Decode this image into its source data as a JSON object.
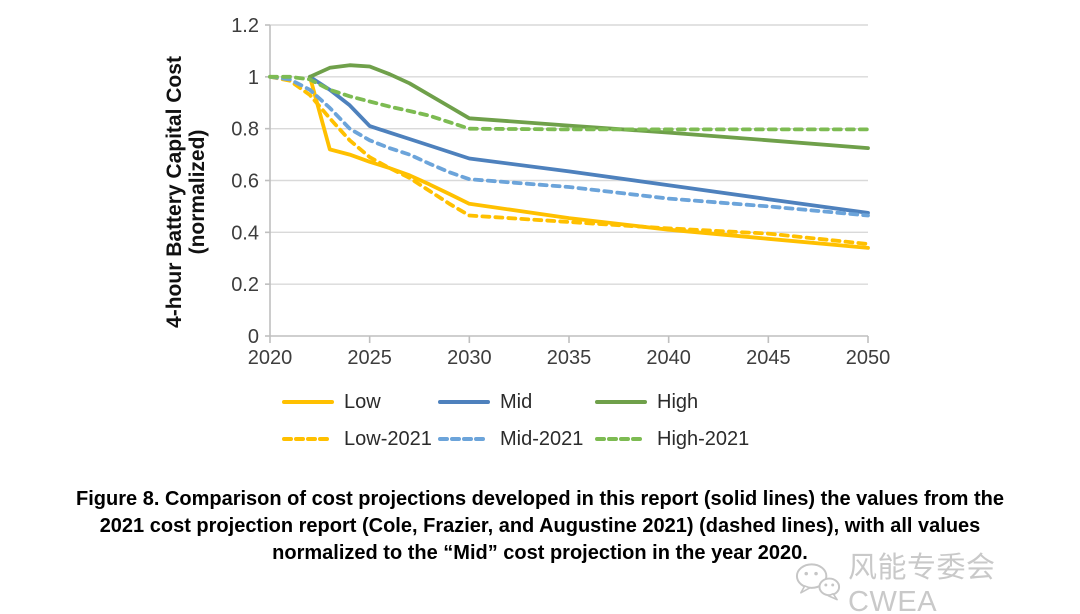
{
  "chart_data": {
    "type": "line",
    "title": "",
    "xlabel": "",
    "ylabel": "4-hour Battery Capital Cost (normalized)",
    "ylabel_line1": "4-hour Battery Capital Cost",
    "ylabel_line2": "(normalized)",
    "xlim": [
      2020,
      2050
    ],
    "ylim": [
      0,
      1.2
    ],
    "x_tick_values": [
      2020,
      2025,
      2030,
      2035,
      2040,
      2045,
      2050
    ],
    "x_tick_labels": [
      "2020",
      "2025",
      "2030",
      "2035",
      "2040",
      "2045",
      "2050"
    ],
    "y_tick_values": [
      0,
      0.2,
      0.4,
      0.6,
      0.8,
      1,
      1.2
    ],
    "y_tick_labels": [
      "0",
      "0.2",
      "0.4",
      "0.6",
      "0.8",
      "1",
      "1.2"
    ],
    "grid": "horizontal-only",
    "legend_position": "bottom",
    "series": [
      {
        "name": "Low",
        "style": "solid",
        "color": "#FFC000",
        "x": [
          2022,
          2023,
          2024,
          2025,
          2026,
          2027,
          2028,
          2029,
          2030,
          2035,
          2040,
          2045,
          2050
        ],
        "y": [
          1.0,
          0.72,
          0.7,
          0.672,
          0.648,
          0.62,
          0.585,
          0.548,
          0.51,
          0.455,
          0.41,
          0.375,
          0.34
        ]
      },
      {
        "name": "Mid",
        "style": "solid",
        "color": "#4E81BD",
        "x": [
          2022,
          2023,
          2024,
          2025,
          2026,
          2027,
          2028,
          2029,
          2030,
          2035,
          2040,
          2045,
          2050
        ],
        "y": [
          1.0,
          0.95,
          0.89,
          0.81,
          0.785,
          0.76,
          0.735,
          0.71,
          0.685,
          0.635,
          0.582,
          0.528,
          0.475
        ]
      },
      {
        "name": "High",
        "style": "solid",
        "color": "#6FA04A",
        "x": [
          2022,
          2023,
          2024,
          2025,
          2026,
          2027,
          2028,
          2029,
          2030,
          2035,
          2040,
          2045,
          2050
        ],
        "y": [
          1.0,
          1.035,
          1.045,
          1.04,
          1.01,
          0.975,
          0.93,
          0.885,
          0.84,
          0.812,
          0.785,
          0.755,
          0.725
        ]
      },
      {
        "name": "Low-2021",
        "style": "dashed",
        "color": "#FFC000",
        "x": [
          2020,
          2021,
          2022,
          2023,
          2024,
          2025,
          2026,
          2027,
          2028,
          2029,
          2030,
          2035,
          2040,
          2045,
          2050
        ],
        "y": [
          1.0,
          0.985,
          0.93,
          0.84,
          0.755,
          0.69,
          0.648,
          0.61,
          0.56,
          0.51,
          0.465,
          0.44,
          0.415,
          0.395,
          0.355
        ]
      },
      {
        "name": "Mid-2021",
        "style": "dashed",
        "color": "#6CA4DA",
        "x": [
          2020,
          2021,
          2022,
          2023,
          2024,
          2025,
          2026,
          2027,
          2028,
          2029,
          2030,
          2035,
          2040,
          2045,
          2050
        ],
        "y": [
          1.0,
          0.99,
          0.95,
          0.88,
          0.8,
          0.755,
          0.725,
          0.7,
          0.665,
          0.632,
          0.605,
          0.575,
          0.53,
          0.5,
          0.465
        ]
      },
      {
        "name": "High-2021",
        "style": "dashed",
        "color": "#7DBB52",
        "x": [
          2020,
          2021,
          2022,
          2023,
          2024,
          2025,
          2026,
          2027,
          2028,
          2029,
          2030,
          2035,
          2040,
          2045,
          2050
        ],
        "y": [
          1.0,
          1.0,
          0.99,
          0.95,
          0.925,
          0.905,
          0.885,
          0.868,
          0.85,
          0.825,
          0.8,
          0.797,
          0.797,
          0.797,
          0.797
        ]
      }
    ]
  },
  "caption": {
    "line1": "Figure 8. Comparison of cost projections developed in this report (solid lines) the values from the",
    "line2": "2021 cost projection report (Cole, Frazier, and Augustine 2021) (dashed lines), with all values",
    "line3": "normalized to the “Mid” cost projection in the year 2020."
  },
  "watermark": {
    "text": "风能专委会CWEA"
  }
}
